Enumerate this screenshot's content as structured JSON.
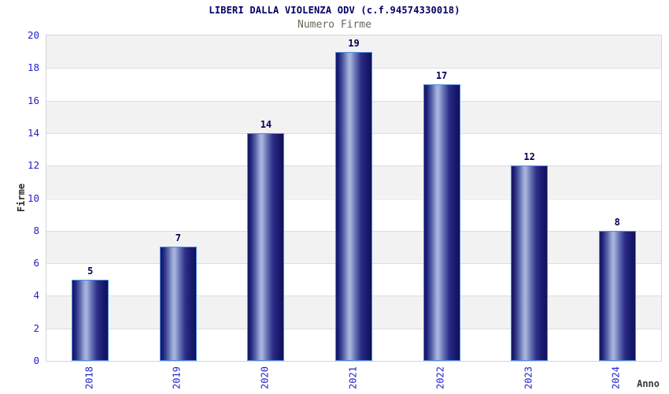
{
  "header": {
    "title": "LIBERI DALLA VIOLENZA ODV (c.f.94574330018)",
    "subtitle": "Numero Firme"
  },
  "chart_data": {
    "type": "bar",
    "title": "LIBERI DALLA VIOLENZA ODV (c.f.94574330018)",
    "subtitle": "Numero Firme",
    "categories": [
      "2018",
      "2019",
      "2020",
      "2021",
      "2022",
      "2023",
      "2024"
    ],
    "values": [
      5,
      7,
      14,
      19,
      17,
      12,
      8
    ],
    "xlabel": "Anno",
    "ylabel": "Firme",
    "ylim": [
      0,
      20
    ],
    "yticks": [
      0,
      2,
      4,
      6,
      8,
      10,
      12,
      14,
      16,
      18,
      20
    ],
    "grid": "horizontal gridlines every 2 units with alternating gray/white bands",
    "legend_position": "none",
    "bar_value_labels": [
      "5",
      "7",
      "14",
      "19",
      "17",
      "12",
      "8"
    ]
  },
  "colors": {
    "title_text": "#000066",
    "subtitle_text": "#67675a",
    "tick_label": "#2222cc",
    "axis_label": "#2b2b2b",
    "value_label": "#000055",
    "bar_edge": "#4d8be0",
    "bar_dark": "#14145f",
    "bar_highlight": "#a9b5dc",
    "band_gray": "#f2f2f2",
    "band_white": "#ffffff",
    "grid_line": "#dddddd",
    "plot_border": "#d4d4d4",
    "background": "#ffffff"
  }
}
